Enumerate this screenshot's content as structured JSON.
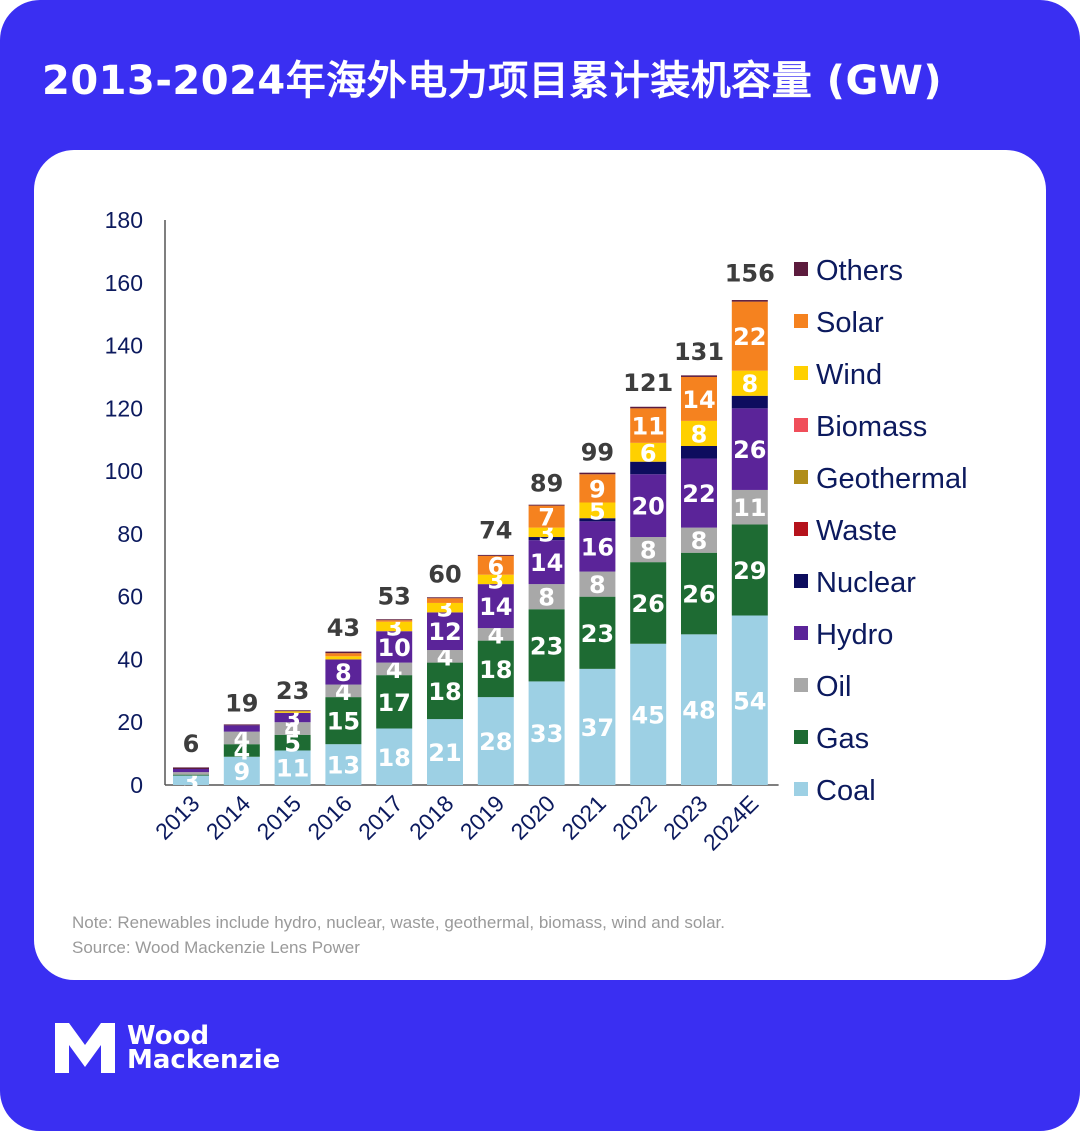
{
  "title": "2013-2024年海外电力项目累计装机容量 (GW)",
  "note": "Note: Renewables include hydro, nuclear, waste, geothermal, biomass, wind and solar.",
  "source": "Source: Wood Mackenzie Lens Power",
  "brand": {
    "line1": "Wood",
    "line2": "Mackenzie",
    "icon": "wood-mackenzie-logo-icon"
  },
  "colors": {
    "background": "#3a2ff2",
    "card": "#ffffff",
    "axis": "#000000",
    "tick_text": "#0c1a5e",
    "total_text": "#3d3d3d"
  },
  "chart_data": {
    "type": "bar",
    "stacked": true,
    "title": "2013-2024年海外电力项目累计装机容量 (GW)",
    "xlabel": "",
    "ylabel": "",
    "ylim": [
      0,
      180
    ],
    "yticks": [
      0,
      20,
      40,
      60,
      80,
      100,
      120,
      140,
      160,
      180
    ],
    "grid": false,
    "legend_position": "right",
    "categories": [
      "2013",
      "2014",
      "2015",
      "2016",
      "2017",
      "2018",
      "2019",
      "2020",
      "2021",
      "2022",
      "2023",
      "2024E"
    ],
    "totals": [
      6,
      19,
      23,
      43,
      53,
      60,
      74,
      89,
      99,
      121,
      131,
      156
    ],
    "series": [
      {
        "name": "Coal",
        "color": "#9dd0e4",
        "labels": true,
        "values": [
          3,
          9,
          11,
          13,
          18,
          21,
          28,
          33,
          37,
          45,
          48,
          54
        ]
      },
      {
        "name": "Gas",
        "color": "#1e6b33",
        "labels": true,
        "values": [
          0.3,
          4,
          5,
          15,
          17,
          18,
          18,
          23,
          23,
          26,
          26,
          29
        ]
      },
      {
        "name": "Oil",
        "color": "#a8a8a8",
        "labels": true,
        "values": [
          0.8,
          4,
          4,
          4,
          4,
          4,
          4,
          8,
          8,
          8,
          8,
          11
        ]
      },
      {
        "name": "Hydro",
        "color": "#5b2499",
        "labels": true,
        "values": [
          1,
          2,
          3,
          8,
          10,
          12,
          14,
          14,
          16,
          20,
          22,
          26
        ]
      },
      {
        "name": "Nuclear",
        "color": "#0d0d5e",
        "labels": false,
        "values": [
          0,
          0,
          0,
          0,
          0,
          0,
          0,
          1,
          1,
          4,
          4,
          4
        ]
      },
      {
        "name": "Waste",
        "color": "#b5121b",
        "labels": false,
        "values": [
          0,
          0,
          0,
          0,
          0,
          0,
          0,
          0,
          0,
          0,
          0,
          0
        ]
      },
      {
        "name": "Geothermal",
        "color": "#b08d1a",
        "labels": false,
        "values": [
          0,
          0,
          0,
          0,
          0,
          0,
          0,
          0,
          0,
          0,
          0,
          0
        ]
      },
      {
        "name": "Biomass",
        "color": "#f04e5a",
        "labels": false,
        "values": [
          0,
          0,
          0,
          0,
          0,
          0,
          0,
          0,
          0,
          0,
          0,
          0
        ]
      },
      {
        "name": "Wind",
        "color": "#ffd000",
        "labels": true,
        "values": [
          0,
          0,
          0.5,
          1,
          3,
          3,
          3,
          3,
          5,
          6,
          8,
          8
        ]
      },
      {
        "name": "Solar",
        "color": "#f5821f",
        "labels": true,
        "values": [
          0,
          0,
          0,
          1,
          0.5,
          1.5,
          6,
          7,
          9,
          11,
          14,
          22
        ]
      },
      {
        "name": "Others",
        "color": "#5c1b3d",
        "labels": false,
        "values": [
          0.5,
          0.3,
          0.3,
          0.5,
          0.3,
          0.3,
          0.3,
          0.3,
          0.5,
          0.5,
          0.5,
          0.5
        ]
      }
    ],
    "legend_order": [
      "Others",
      "Solar",
      "Wind",
      "Biomass",
      "Geothermal",
      "Waste",
      "Nuclear",
      "Hydro",
      "Oil",
      "Gas",
      "Coal"
    ]
  }
}
